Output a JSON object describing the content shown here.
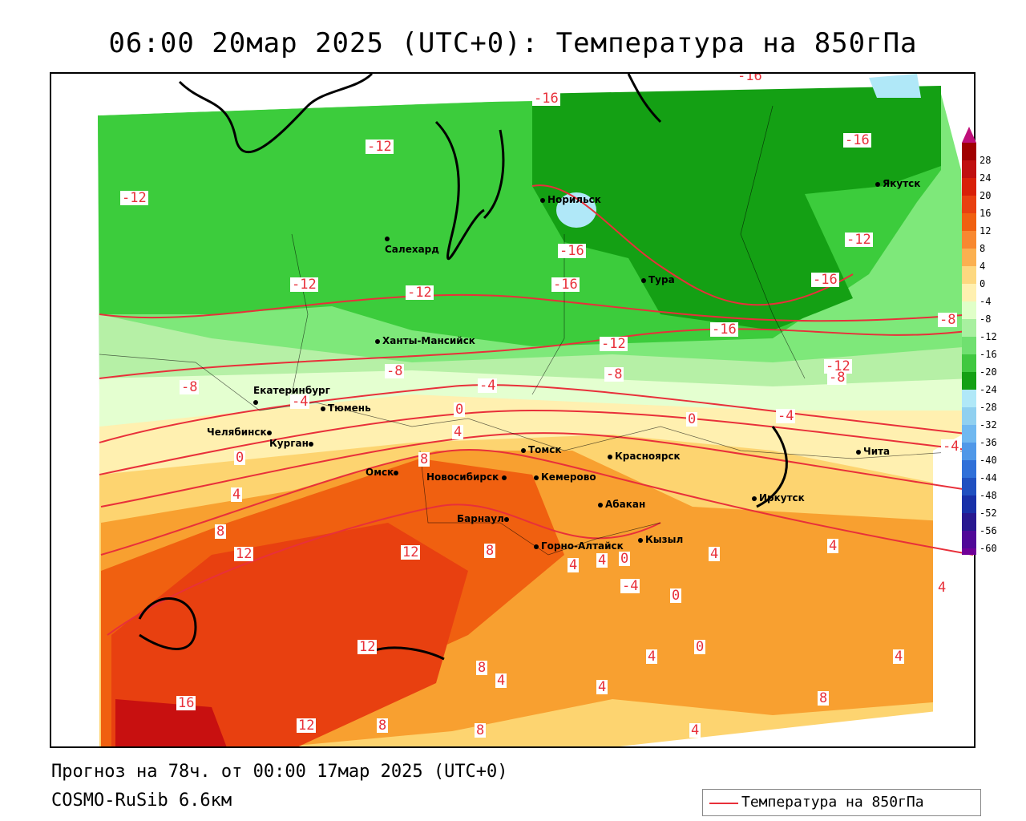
{
  "title": "06:00 20мар 2025 (UTC+0): Температура на 850гПа",
  "footer": {
    "forecast": "Прогноз на 78ч. от 00:00 17мар 2025 (UTC+0)",
    "model": "COSMO-RuSib 6.6км"
  },
  "legend": {
    "label": "Температура на 850гПа",
    "line_color": "#e8303a"
  },
  "colorbar": {
    "ticks": [
      "28",
      "24",
      "20",
      "16",
      "12",
      "8",
      "4",
      "0",
      "-4",
      "-8",
      "-12",
      "-16",
      "-20",
      "-24",
      "-28",
      "-32",
      "-36",
      "-40",
      "-44",
      "-48",
      "-52",
      "-56",
      "-60"
    ],
    "colors": [
      "#a00000",
      "#c01010",
      "#d82008",
      "#e84010",
      "#f06010",
      "#f88830",
      "#fbb050",
      "#fdd880",
      "#fff0b0",
      "#e0ffc8",
      "#a8f0a0",
      "#70e070",
      "#40c840",
      "#14a014",
      "#b0e8f8",
      "#90d0f0",
      "#70b8f0",
      "#5098e8",
      "#3070d8",
      "#2050c0",
      "#1830a8",
      "#281890",
      "#500898",
      "#700098"
    ]
  },
  "cities": [
    {
      "name": "Норильск"
    },
    {
      "name": "Якутск"
    },
    {
      "name": "Салехард"
    },
    {
      "name": "Тура"
    },
    {
      "name": "Ханты-Мансийск"
    },
    {
      "name": "Екатеринбург"
    },
    {
      "name": "Тюмень"
    },
    {
      "name": "Челябинск"
    },
    {
      "name": "Курган"
    },
    {
      "name": "Омск"
    },
    {
      "name": "Новосибирск"
    },
    {
      "name": "Томск"
    },
    {
      "name": "Кемерово"
    },
    {
      "name": "Красноярск"
    },
    {
      "name": "Абакан"
    },
    {
      "name": "Барнаул"
    },
    {
      "name": "Горно-Алтайск"
    },
    {
      "name": "Кызыл"
    },
    {
      "name": "Иркутск"
    },
    {
      "name": "Чита"
    }
  ],
  "isolines": [
    {
      "value": "-16"
    },
    {
      "value": "-16"
    },
    {
      "value": "-16"
    },
    {
      "value": "-12"
    },
    {
      "value": "-12"
    },
    {
      "value": "-16"
    },
    {
      "value": "-12"
    },
    {
      "value": "-12"
    },
    {
      "value": "-16"
    },
    {
      "value": "-12"
    },
    {
      "value": "-16"
    },
    {
      "value": "-8"
    },
    {
      "value": "-12"
    },
    {
      "value": "-8"
    },
    {
      "value": "-8"
    },
    {
      "value": "-8"
    },
    {
      "value": "-4"
    },
    {
      "value": "-4"
    },
    {
      "value": "0"
    },
    {
      "value": "4"
    },
    {
      "value": "0"
    },
    {
      "value": "-4"
    },
    {
      "value": "0"
    },
    {
      "value": "8"
    },
    {
      "value": "4"
    },
    {
      "value": "12"
    },
    {
      "value": "12"
    },
    {
      "value": "8"
    },
    {
      "value": "4"
    },
    {
      "value": "4"
    },
    {
      "value": "0"
    },
    {
      "value": "-4"
    },
    {
      "value": "8"
    },
    {
      "value": "12"
    },
    {
      "value": "8"
    },
    {
      "value": "4"
    },
    {
      "value": "16"
    },
    {
      "value": "12"
    },
    {
      "value": "8"
    },
    {
      "value": "8"
    },
    {
      "value": "4"
    },
    {
      "value": "4"
    },
    {
      "value": "8"
    },
    {
      "value": "4"
    },
    {
      "value": "4"
    },
    {
      "value": "-12"
    },
    {
      "value": "-16"
    },
    {
      "value": "-4"
    },
    {
      "value": "-8"
    },
    {
      "value": "0"
    },
    {
      "value": "4"
    },
    {
      "value": "0"
    },
    {
      "value": "4"
    },
    {
      "value": "4"
    }
  ]
}
